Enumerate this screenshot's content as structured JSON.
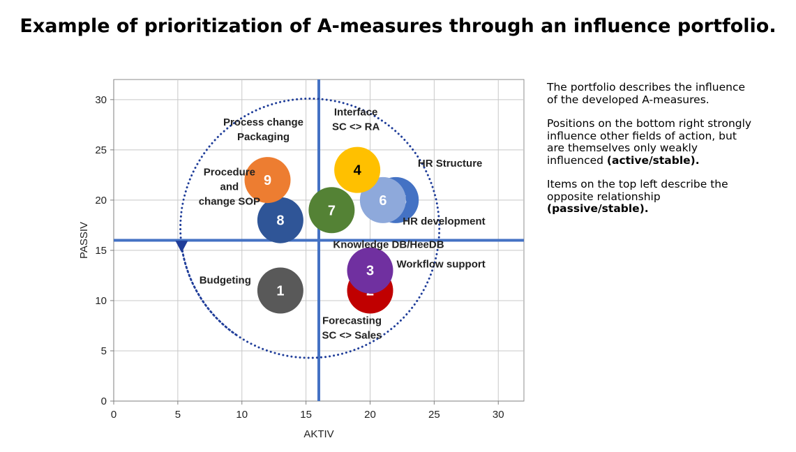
{
  "title": "Example of prioritization of A-measures through an influence portfolio.",
  "side_text": {
    "p1": "The portfolio describes the influence of the developed A-measures.",
    "p2_text": "Positions on the bottom right strongly influence other fields of action, but are themselves only weakly influenced ",
    "p2_bold": "(active/stable).",
    "p3_text": "Items on the top left describe the opposite relationship ",
    "p3_bold": "(passive/stable)."
  },
  "chart_data": {
    "type": "bubble",
    "xlabel": "AKTIV",
    "ylabel": "PASSIV",
    "xlim": [
      0,
      32
    ],
    "ylim": [
      0,
      32
    ],
    "xticks": [
      0,
      5,
      10,
      15,
      20,
      25,
      30
    ],
    "yticks": [
      0,
      5,
      10,
      15,
      20,
      25,
      30
    ],
    "grid": true,
    "divider_lines": {
      "x": 16,
      "y": 16,
      "color": "#4472C4"
    },
    "points": [
      {
        "id": "1",
        "label": "Budgeting",
        "x": 13,
        "y": 11,
        "color": "#595959"
      },
      {
        "id": "2",
        "label": "Forecasting SC <> Sales",
        "x": 20,
        "y": 11,
        "color": "#C00000"
      },
      {
        "id": "3",
        "label": "Workflow support",
        "x": 20,
        "y": 13,
        "color": "#7030A0"
      },
      {
        "id": "4",
        "label": "Interface SC <> RA",
        "x": 19,
        "y": 23,
        "color": "#FFC000"
      },
      {
        "id": "5",
        "label": "HR development",
        "x": 22,
        "y": 20,
        "color": "#4472C4"
      },
      {
        "id": "6",
        "label": "HR Structure",
        "x": 21,
        "y": 20,
        "color": "#8EA9DB"
      },
      {
        "id": "7",
        "label": "Knowledge DB/HeeDB",
        "x": 17,
        "y": 19,
        "color": "#548235"
      },
      {
        "id": "8",
        "label": "Procedure and change SOP",
        "x": 13,
        "y": 18,
        "color": "#2F5597"
      },
      {
        "id": "9",
        "label": "Process change Packaging",
        "x": 12,
        "y": 22,
        "color": "#ED7D31"
      }
    ],
    "annotations": [
      {
        "for": "9",
        "lines": [
          "Process change",
          "Packaging"
        ]
      },
      {
        "for": "4",
        "lines": [
          "Interface",
          "SC <> RA"
        ]
      },
      {
        "for": "6",
        "lines": [
          "HR Structure"
        ]
      },
      {
        "for": "8",
        "lines": [
          "Procedure",
          "and",
          "change SOP"
        ]
      },
      {
        "for": "5",
        "lines": [
          "HR development"
        ]
      },
      {
        "for": "7",
        "lines": [
          "Knowledge DB/HeeDB"
        ]
      },
      {
        "for": "3",
        "lines": [
          "Workflow support"
        ]
      },
      {
        "for": "1",
        "lines": [
          "Budgeting"
        ]
      },
      {
        "for": "2",
        "lines": [
          "Forecasting",
          "SC <> Sales"
        ]
      }
    ],
    "arrow": {
      "style": "dotted",
      "direction": "counter-clockwise",
      "color": "#1F3D99"
    }
  }
}
